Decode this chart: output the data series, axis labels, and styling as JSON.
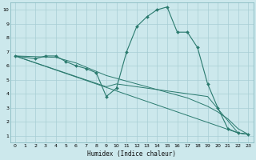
{
  "title": "",
  "xlabel": "Humidex (Indice chaleur)",
  "bg_color": "#cce8ec",
  "line_color": "#2a7a6e",
  "grid_color": "#a8cdd4",
  "xlim": [
    -0.5,
    23.5
  ],
  "ylim": [
    0.5,
    10.5
  ],
  "xticks": [
    0,
    1,
    2,
    3,
    4,
    5,
    6,
    7,
    8,
    9,
    10,
    11,
    12,
    13,
    14,
    15,
    16,
    17,
    18,
    19,
    20,
    21,
    22,
    23
  ],
  "yticks": [
    1,
    2,
    3,
    4,
    5,
    6,
    7,
    8,
    9,
    10
  ],
  "curve1": {
    "x": [
      0,
      2,
      3,
      4,
      5,
      6,
      7,
      8,
      9,
      10,
      11,
      12,
      13,
      14,
      15,
      16,
      17,
      18,
      19,
      20,
      21,
      22,
      23
    ],
    "y": [
      6.7,
      6.5,
      6.7,
      6.7,
      6.3,
      6.0,
      5.8,
      5.5,
      3.8,
      4.4,
      7.0,
      8.8,
      9.5,
      10.0,
      10.2,
      8.4,
      8.4,
      7.3,
      4.7,
      3.0,
      1.5,
      1.2,
      1.1
    ]
  },
  "line2": {
    "x": [
      0,
      22,
      23
    ],
    "y": [
      6.7,
      1.2,
      1.1
    ]
  },
  "line3": {
    "x": [
      0,
      9,
      10,
      19,
      22,
      23
    ],
    "y": [
      6.7,
      4.5,
      4.7,
      3.8,
      1.2,
      1.1
    ]
  },
  "line4": {
    "x": [
      0,
      4,
      5,
      6,
      7,
      8,
      9,
      10,
      11,
      12,
      13,
      14,
      15,
      16,
      17,
      18,
      19,
      20,
      21,
      22,
      23
    ],
    "y": [
      6.7,
      6.6,
      6.4,
      6.2,
      5.9,
      5.6,
      5.3,
      5.1,
      4.9,
      4.7,
      4.5,
      4.3,
      4.1,
      3.9,
      3.7,
      3.4,
      3.1,
      2.7,
      2.2,
      1.5,
      1.1
    ]
  }
}
